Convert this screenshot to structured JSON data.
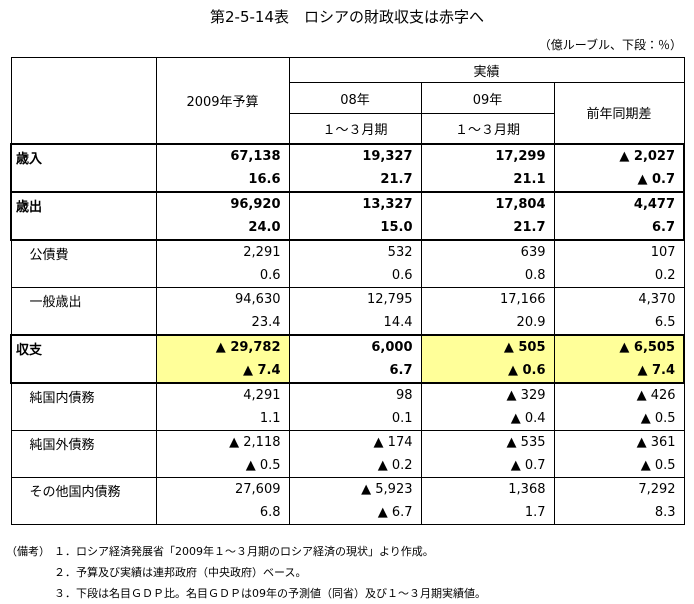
{
  "title": "第2-5-14表　ロシアの財政収支は赤字へ",
  "unit": "（億ルーブル、下段：％）",
  "table": {
    "header": {
      "budget": "2009年予算",
      "actual": "実績",
      "y08": "08年",
      "y09": "09年",
      "period08": "１～３月期",
      "period09": "１～３月期",
      "diff": "前年同期差"
    },
    "rows": [
      {
        "label": "歳入",
        "top": [
          "67,138",
          "19,327",
          "17,299",
          "▲ 2,027"
        ],
        "bottom": [
          "16.6",
          "21.7",
          "21.1",
          "▲ 0.7"
        ]
      },
      {
        "label": "歳出",
        "top": [
          "96,920",
          "13,327",
          "17,804",
          "4,477"
        ],
        "bottom": [
          "24.0",
          "15.0",
          "21.7",
          "6.7"
        ]
      },
      {
        "label": "公債費",
        "top": [
          "2,291",
          "532",
          "639",
          "107"
        ],
        "bottom": [
          "0.6",
          "0.6",
          "0.8",
          "0.2"
        ]
      },
      {
        "label": "一般歳出",
        "top": [
          "94,630",
          "12,795",
          "17,166",
          "4,370"
        ],
        "bottom": [
          "23.4",
          "14.4",
          "20.9",
          "6.5"
        ]
      },
      {
        "label": "収支",
        "top": [
          "▲ 29,782",
          "6,000",
          "▲ 505",
          "▲ 6,505"
        ],
        "bottom": [
          "▲ 7.4",
          "6.7",
          "▲ 0.6",
          "▲ 7.4"
        ]
      },
      {
        "label": "純国内債務",
        "top": [
          "4,291",
          "98",
          "▲ 329",
          "▲ 426"
        ],
        "bottom": [
          "1.1",
          "0.1",
          "▲ 0.4",
          "▲ 0.5"
        ]
      },
      {
        "label": "純国外債務",
        "top": [
          "▲ 2,118",
          "▲ 174",
          "▲ 535",
          "▲ 361"
        ],
        "bottom": [
          "▲ 0.5",
          "▲ 0.2",
          "▲ 0.7",
          "▲ 0.5"
        ]
      },
      {
        "label": "その他国内債務",
        "top": [
          "27,609",
          "▲ 5,923",
          "1,368",
          "7,292"
        ],
        "bottom": [
          "6.8",
          "▲ 6.7",
          "1.7",
          "8.3"
        ]
      }
    ]
  },
  "notes": {
    "prefix": "（備考）",
    "items": [
      "１．ロシア経済発展省「2009年１～３月期のロシア経済の現状」より作成。",
      "２．予算及び実績は連邦政府（中央政府）ベース。",
      "３．下段は名目ＧＤＰ比。名目ＧＤＰは09年の予測値（同省）及び１～３月期実績値。"
    ]
  }
}
